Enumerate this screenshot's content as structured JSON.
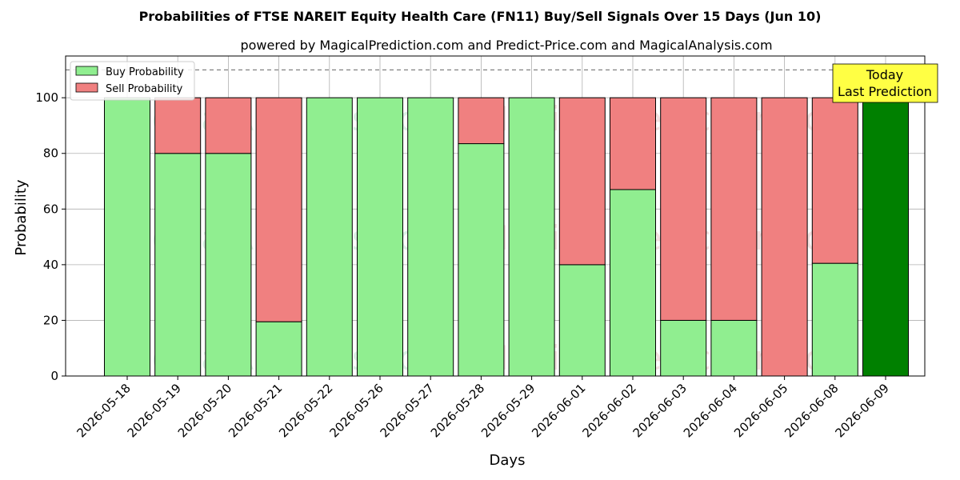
{
  "title": "Probabilities of FTSE NAREIT Equity Health Care (FN11) Buy/Sell Signals Over 15 Days (Jun 10)",
  "subtitle": "powered by MagicalPrediction.com and Predict-Price.com and MagicalAnalysis.com",
  "colors": {
    "buy": "#90ee90",
    "sell": "#f08080",
    "today": "#008000",
    "today_box": "#ffff44",
    "grid": "#b0b0b0",
    "ref_line": "#808080"
  },
  "watermarks": [
    "MagicalAnalysis.com",
    "MagicalPrediction.com"
  ],
  "chart_data": {
    "type": "bar",
    "stacked": true,
    "title": "Probabilities of FTSE NAREIT Equity Health Care (FN11) Buy/Sell Signals Over 15 Days (Jun 10)",
    "xlabel": "Days",
    "ylabel": "Probability",
    "ylim": [
      0,
      115
    ],
    "yticks": [
      0,
      20,
      40,
      60,
      80,
      100
    ],
    "reference_line": 110,
    "grid": true,
    "legend_position": "top-left",
    "categories": [
      "2026-05-18",
      "2026-05-19",
      "2026-05-20",
      "2026-05-21",
      "2026-05-22",
      "2026-05-26",
      "2026-05-27",
      "2026-05-28",
      "2026-05-29",
      "2026-06-01",
      "2026-06-02",
      "2026-06-03",
      "2026-06-04",
      "2026-06-05",
      "2026-06-08",
      "2026-06-09"
    ],
    "series": [
      {
        "name": "Buy Probability",
        "values": [
          100,
          80,
          80,
          19.5,
          100,
          100,
          100,
          83.5,
          100,
          40,
          67,
          20,
          20,
          0,
          40.5,
          100
        ]
      },
      {
        "name": "Sell Probability",
        "values": [
          0,
          20,
          20,
          80.5,
          0,
          0,
          0,
          16.5,
          0,
          60,
          33,
          80,
          80,
          100,
          59.5,
          0
        ]
      }
    ],
    "today_index": 15,
    "annotation": {
      "line1": "Today",
      "line2": "Last Prediction"
    }
  }
}
